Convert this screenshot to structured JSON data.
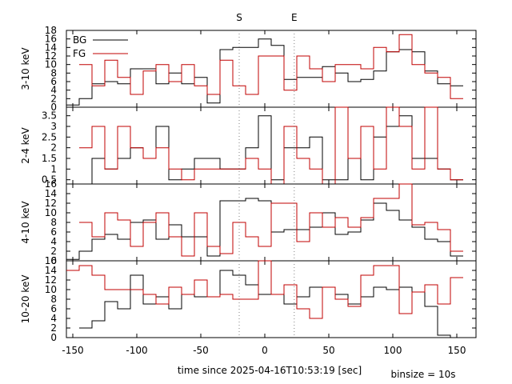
{
  "chart_data": {
    "type": "line",
    "step": true,
    "xlabel": "time since 2025-04-16T10:53:19 [sec]",
    "binsize_label": "binsize = 10s",
    "xlim": [
      -155,
      165
    ],
    "x_ticks": [
      -150,
      -100,
      -50,
      0,
      50,
      100,
      150
    ],
    "markers": [
      {
        "label": "S",
        "x": -20
      },
      {
        "label": "E",
        "x": 23
      }
    ],
    "legend": {
      "position": "top-left",
      "entries": [
        {
          "name": "BG",
          "color": "#000000"
        },
        {
          "name": "FG",
          "color": "#c00000"
        }
      ]
    },
    "panels": [
      {
        "ylabel": "3-10 keV",
        "ylim": [
          0,
          18
        ],
        "y_ticks": [
          0,
          2,
          4,
          6,
          8,
          10,
          12,
          14,
          16,
          18
        ],
        "y_tick_labels": [
          "0",
          "2",
          "4",
          "6",
          "8",
          "10",
          "12",
          "14",
          "16",
          "18"
        ],
        "series": [
          {
            "name": "BG",
            "color": "#000000",
            "edges": [
              -155,
              -145,
              -135,
              -125,
              -115,
              -105,
              -95,
              -85,
              -75,
              -65,
              -55,
              -45,
              -35,
              -25,
              -15,
              -5,
              5,
              15,
              25,
              35,
              45,
              55,
              65,
              75,
              85,
              95,
              105,
              115,
              125,
              135,
              145,
              155
            ],
            "values": [
              0.5,
              2,
              5.5,
              6,
              5.5,
              9,
              9,
              5.5,
              8,
              5.5,
              7,
              1,
              13.5,
              14,
              14,
              16,
              14.5,
              6.5,
              7,
              7,
              9.5,
              8,
              6,
              6.5,
              8.5,
              13,
              13.5,
              13,
              8.5,
              5.5,
              5
            ]
          },
          {
            "name": "FG",
            "color": "#c00000",
            "edges": [
              -145,
              -135,
              -125,
              -115,
              -105,
              -95,
              -85,
              -75,
              -65,
              -55,
              -45,
              -35,
              -25,
              -15,
              -5,
              5,
              15,
              25,
              35,
              45,
              55,
              65,
              75,
              85,
              95,
              105,
              115,
              125,
              135,
              145,
              155
            ],
            "values": [
              10,
              5,
              11,
              7,
              3,
              8.5,
              10,
              6,
              10,
              5,
              3,
              11,
              5,
              3,
              12,
              12,
              4,
              12,
              9,
              6,
              10,
              10,
              9,
              14,
              13,
              17,
              10,
              8,
              7,
              2
            ]
          }
        ]
      },
      {
        "ylabel": "2-4 keV",
        "ylim": [
          0.3,
          3.9
        ],
        "y_ticks": [
          0.5,
          1,
          1.5,
          2,
          2.5,
          3,
          3.5
        ],
        "y_tick_labels": [
          "0.5",
          "1",
          "1.5",
          "2",
          "2.5",
          "3",
          "3.5"
        ],
        "series": [
          {
            "name": "BG",
            "color": "#000000",
            "edges": [
              -155,
              -145,
              -135,
              -125,
              -115,
              -105,
              -95,
              -85,
              -75,
              -65,
              -55,
              -45,
              -35,
              -25,
              -15,
              -5,
              5,
              15,
              25,
              35,
              45,
              55,
              65,
              75,
              85,
              95,
              105,
              115,
              125,
              135,
              145,
              155
            ],
            "values": [
              0.3,
              0.3,
              1.5,
              1,
              1.5,
              2,
              1.5,
              3,
              0.5,
              1,
              1.5,
              1.5,
              1,
              1,
              2,
              3.5,
              0.5,
              2,
              2,
              2.5,
              0.5,
              0.5,
              1.5,
              0.5,
              2.5,
              3,
              3.5,
              1.5,
              1.5,
              1,
              0.5
            ]
          },
          {
            "name": "FG",
            "color": "#c00000",
            "edges": [
              -145,
              -135,
              -125,
              -115,
              -105,
              -95,
              -85,
              -75,
              -65,
              -55,
              -45,
              -35,
              -25,
              -15,
              -5,
              5,
              15,
              25,
              35,
              45,
              55,
              65,
              75,
              85,
              95,
              105,
              115,
              125,
              135,
              145,
              155
            ],
            "values": [
              2,
              3,
              1,
              3,
              2,
              1.5,
              2,
              1,
              0.5,
              1,
              1,
              1,
              1,
              1.5,
              1,
              0.3,
              3,
              1.5,
              1,
              0.3,
              3.9,
              1.5,
              3,
              1,
              3.9,
              3,
              1,
              3.9,
              1,
              0.5
            ]
          }
        ]
      },
      {
        "ylabel": "4-10 keV",
        "ylim": [
          0,
          16
        ],
        "y_ticks": [
          0,
          2,
          4,
          6,
          8,
          10,
          12,
          14,
          16
        ],
        "y_tick_labels": [
          "0",
          "2",
          "4",
          "6",
          "8",
          "10",
          "12",
          "14",
          "16"
        ],
        "series": [
          {
            "name": "BG",
            "color": "#000000",
            "edges": [
              -155,
              -145,
              -135,
              -125,
              -115,
              -105,
              -95,
              -85,
              -75,
              -65,
              -55,
              -45,
              -35,
              -25,
              -15,
              -5,
              5,
              15,
              25,
              35,
              45,
              55,
              65,
              75,
              85,
              95,
              105,
              115,
              125,
              135,
              145,
              155
            ],
            "values": [
              0.3,
              2,
              4.5,
              5.5,
              4.5,
              8,
              8.5,
              4.5,
              7.5,
              5,
              5,
              1,
              12.5,
              12.5,
              13,
              12.5,
              6,
              6.5,
              6.5,
              7,
              10,
              5.5,
              6,
              8.5,
              12,
              10.5,
              8.5,
              7,
              4.5,
              4,
              1
            ]
          },
          {
            "name": "FG",
            "color": "#c00000",
            "edges": [
              -145,
              -135,
              -125,
              -115,
              -105,
              -95,
              -85,
              -75,
              -65,
              -55,
              -45,
              -35,
              -25,
              -15,
              -5,
              5,
              15,
              25,
              35,
              45,
              55,
              65,
              75,
              85,
              95,
              105,
              115,
              125,
              135,
              145,
              155
            ],
            "values": [
              8,
              5,
              10,
              8.5,
              3,
              8,
              10,
              5,
              1,
              10,
              3,
              1.5,
              8,
              5,
              3,
              12,
              12,
              4,
              10,
              7,
              9,
              7,
              9,
              13,
              13,
              16,
              7.5,
              8,
              6.5,
              2
            ]
          }
        ]
      },
      {
        "ylabel": "10-20 keV",
        "ylim": [
          0,
          16
        ],
        "y_ticks": [
          0,
          2,
          4,
          6,
          8,
          10,
          12,
          14,
          16
        ],
        "y_tick_labels": [
          "0",
          "2",
          "4",
          "6",
          "8",
          "10",
          "12",
          "14",
          "16"
        ],
        "series": [
          {
            "name": "BG",
            "color": "#000000",
            "edges": [
              -145,
              -135,
              -125,
              -115,
              -105,
              -95,
              -85,
              -75,
              -65,
              -55,
              -45,
              -35,
              -25,
              -15,
              -5,
              5,
              15,
              25,
              35,
              45,
              55,
              65,
              75,
              85,
              95,
              105,
              115,
              125,
              135,
              145,
              155
            ],
            "values": [
              2,
              3.5,
              7.5,
              6,
              13,
              7,
              8.5,
              6,
              9,
              8.5,
              8.5,
              14,
              13,
              11,
              9,
              9,
              7,
              8.5,
              10.5,
              10.5,
              9,
              7,
              8.5,
              10.5,
              10,
              10.5,
              9.5,
              6.5,
              0.5,
              0
            ]
          },
          {
            "name": "FG",
            "color": "#c00000",
            "edges": [
              -155,
              -145,
              -135,
              -125,
              -115,
              -105,
              -95,
              -85,
              -75,
              -65,
              -55,
              -45,
              -35,
              -25,
              -15,
              -5,
              5,
              15,
              25,
              35,
              45,
              55,
              65,
              75,
              85,
              95,
              105,
              115,
              125,
              135,
              145,
              155
            ],
            "values": [
              14,
              15,
              13,
              10,
              10,
              10,
              9,
              7,
              10.5,
              9,
              12,
              8.5,
              9,
              8,
              8,
              16,
              9,
              11,
              6,
              4,
              10.5,
              8,
              6.5,
              13,
              15,
              15,
              5,
              9.5,
              11,
              7,
              12.5
            ]
          }
        ]
      }
    ]
  }
}
